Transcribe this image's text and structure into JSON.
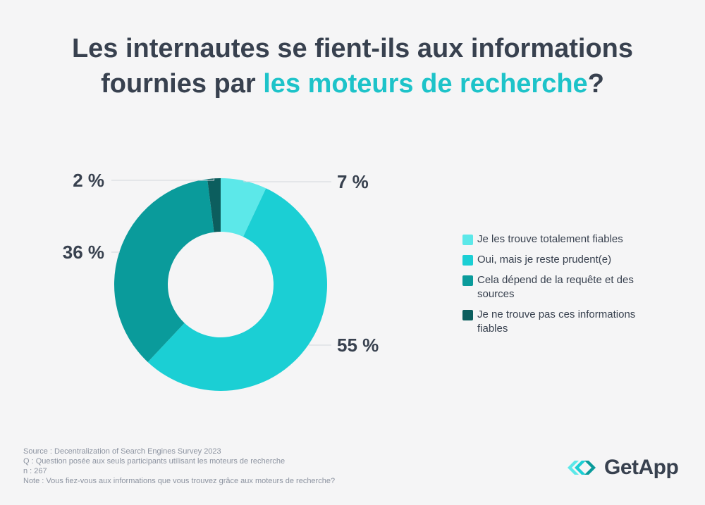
{
  "title": {
    "part1": "Les internautes se fient-ils aux informations",
    "part2": "fournies par",
    "highlight": "les moteurs de recherche",
    "end": "?"
  },
  "colors": {
    "text": "#38414f",
    "highlight": "#1dc3c9",
    "leader": "#d4d7dc"
  },
  "chart_data": {
    "type": "pie",
    "variant": "donut",
    "title": "Les internautes se fient-ils aux informations fournies par les moteurs de recherche?",
    "categories": [
      "Je les trouve totalement fiables",
      "Oui, mais je reste prudent(e)",
      "Cela dépend de la requête et des sources",
      "Je ne trouve pas ces informations fiables"
    ],
    "values": [
      7,
      55,
      36,
      2
    ],
    "value_labels": [
      "7 %",
      "55 %",
      "36 %",
      "2 %"
    ],
    "slice_colors": [
      "#5ce8e9",
      "#1bcfd4",
      "#0a9b9b",
      "#0c5e5e"
    ],
    "legend_position": "right"
  },
  "legend": [
    {
      "lines": [
        "Je les trouve totalement fiables"
      ],
      "color": "#5ce8e9"
    },
    {
      "lines": [
        "Oui, mais je reste prudent(e)"
      ],
      "color": "#1bcfd4"
    },
    {
      "lines": [
        "Cela dépend de la requête et des",
        "sources"
      ],
      "color": "#0a9b9b"
    },
    {
      "lines": [
        "Je ne trouve pas ces informations",
        "fiables"
      ],
      "color": "#0c5e5e"
    }
  ],
  "footer": {
    "source": "Source : Decentralization of Search Engines Survey 2023",
    "question": "Q : Question posée aux seuls participants utilisant les moteurs de recherche",
    "n": "n : 267",
    "note": "Note : Vous fiez-vous aux informations que vous trouvez grâce aux moteurs de recherche?"
  },
  "logo": {
    "text": "GetApp",
    "icon": "getapp-chevrons-icon"
  }
}
